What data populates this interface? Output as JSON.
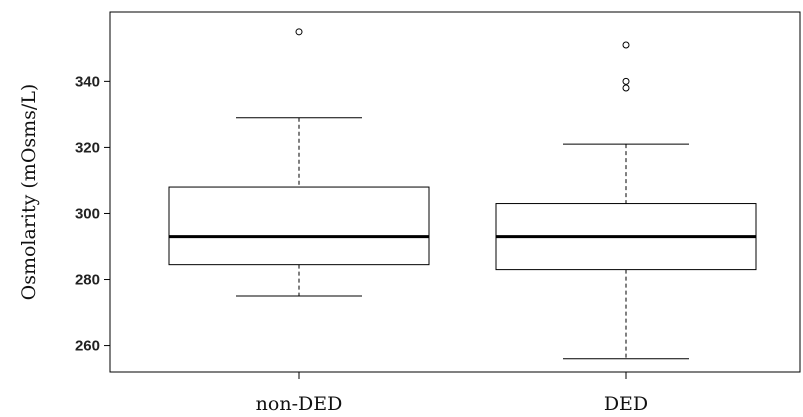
{
  "chart_data": {
    "type": "boxplot",
    "title": "",
    "xlabel": "",
    "ylabel": "Osmolarity (mOsms/L)",
    "ylim": [
      252,
      361
    ],
    "yticks": [
      260,
      280,
      300,
      320,
      340
    ],
    "grid": false,
    "legend": "none",
    "categories": [
      "non-DED",
      "DED"
    ],
    "boxes": [
      {
        "category": "non-DED",
        "whisker_low": 275,
        "q1": 284.5,
        "median": 293,
        "q3": 308,
        "whisker_high": 329,
        "outliers": [
          355
        ]
      },
      {
        "category": "DED",
        "whisker_low": 256,
        "q1": 283,
        "median": 293,
        "q3": 303,
        "whisker_high": 321,
        "outliers": [
          338,
          340,
          351
        ]
      }
    ],
    "colors": {
      "box_fill": "#ffffff",
      "stroke": "#000000",
      "median": "#000000"
    }
  }
}
